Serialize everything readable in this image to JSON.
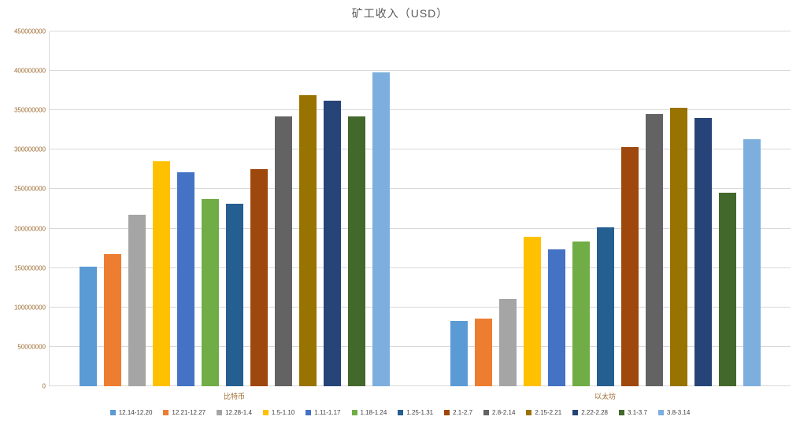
{
  "chart_data": {
    "type": "bar",
    "title": "矿工收入（USD）",
    "categories": [
      "比特币",
      "以太坊"
    ],
    "ylim": [
      0,
      450000000
    ],
    "ytick_step": 50000000,
    "yticks": [
      "0",
      "50000000",
      "100000000",
      "150000000",
      "200000000",
      "250000000",
      "300000000",
      "350000000",
      "400000000",
      "450000000"
    ],
    "grid": "horizontal",
    "legend_position": "bottom",
    "series": [
      {
        "name": "12.14-12.20",
        "color": "#5B9BD5",
        "values": [
          152000000,
          83000000
        ]
      },
      {
        "name": "12.21-12.27",
        "color": "#ED7D31",
        "values": [
          168000000,
          86000000
        ]
      },
      {
        "name": "12.28-1.4",
        "color": "#A5A5A5",
        "values": [
          218000000,
          111000000
        ]
      },
      {
        "name": "1.5-1.10",
        "color": "#FFC000",
        "values": [
          285000000,
          190000000
        ]
      },
      {
        "name": "1.11-1.17",
        "color": "#4472C4",
        "values": [
          271000000,
          174000000
        ]
      },
      {
        "name": "1.18-1.24",
        "color": "#70AD47",
        "values": [
          237000000,
          184000000
        ]
      },
      {
        "name": "1.25-1.31",
        "color": "#255E91",
        "values": [
          232000000,
          202000000
        ]
      },
      {
        "name": "2.1-2.7",
        "color": "#9E480E",
        "values": [
          275000000,
          303000000
        ]
      },
      {
        "name": "2.8-2.14",
        "color": "#636363",
        "values": [
          342000000,
          345000000
        ]
      },
      {
        "name": "2.15-2.21",
        "color": "#997300",
        "values": [
          369000000,
          353000000
        ]
      },
      {
        "name": "2.22-2.28",
        "color": "#264478",
        "values": [
          362000000,
          340000000
        ]
      },
      {
        "name": "3.1-3.7",
        "color": "#43682B",
        "values": [
          342000000,
          245000000
        ]
      },
      {
        "name": "3.8-3.14",
        "color": "#7CAFDD",
        "values": [
          398000000,
          313000000
        ]
      }
    ]
  }
}
